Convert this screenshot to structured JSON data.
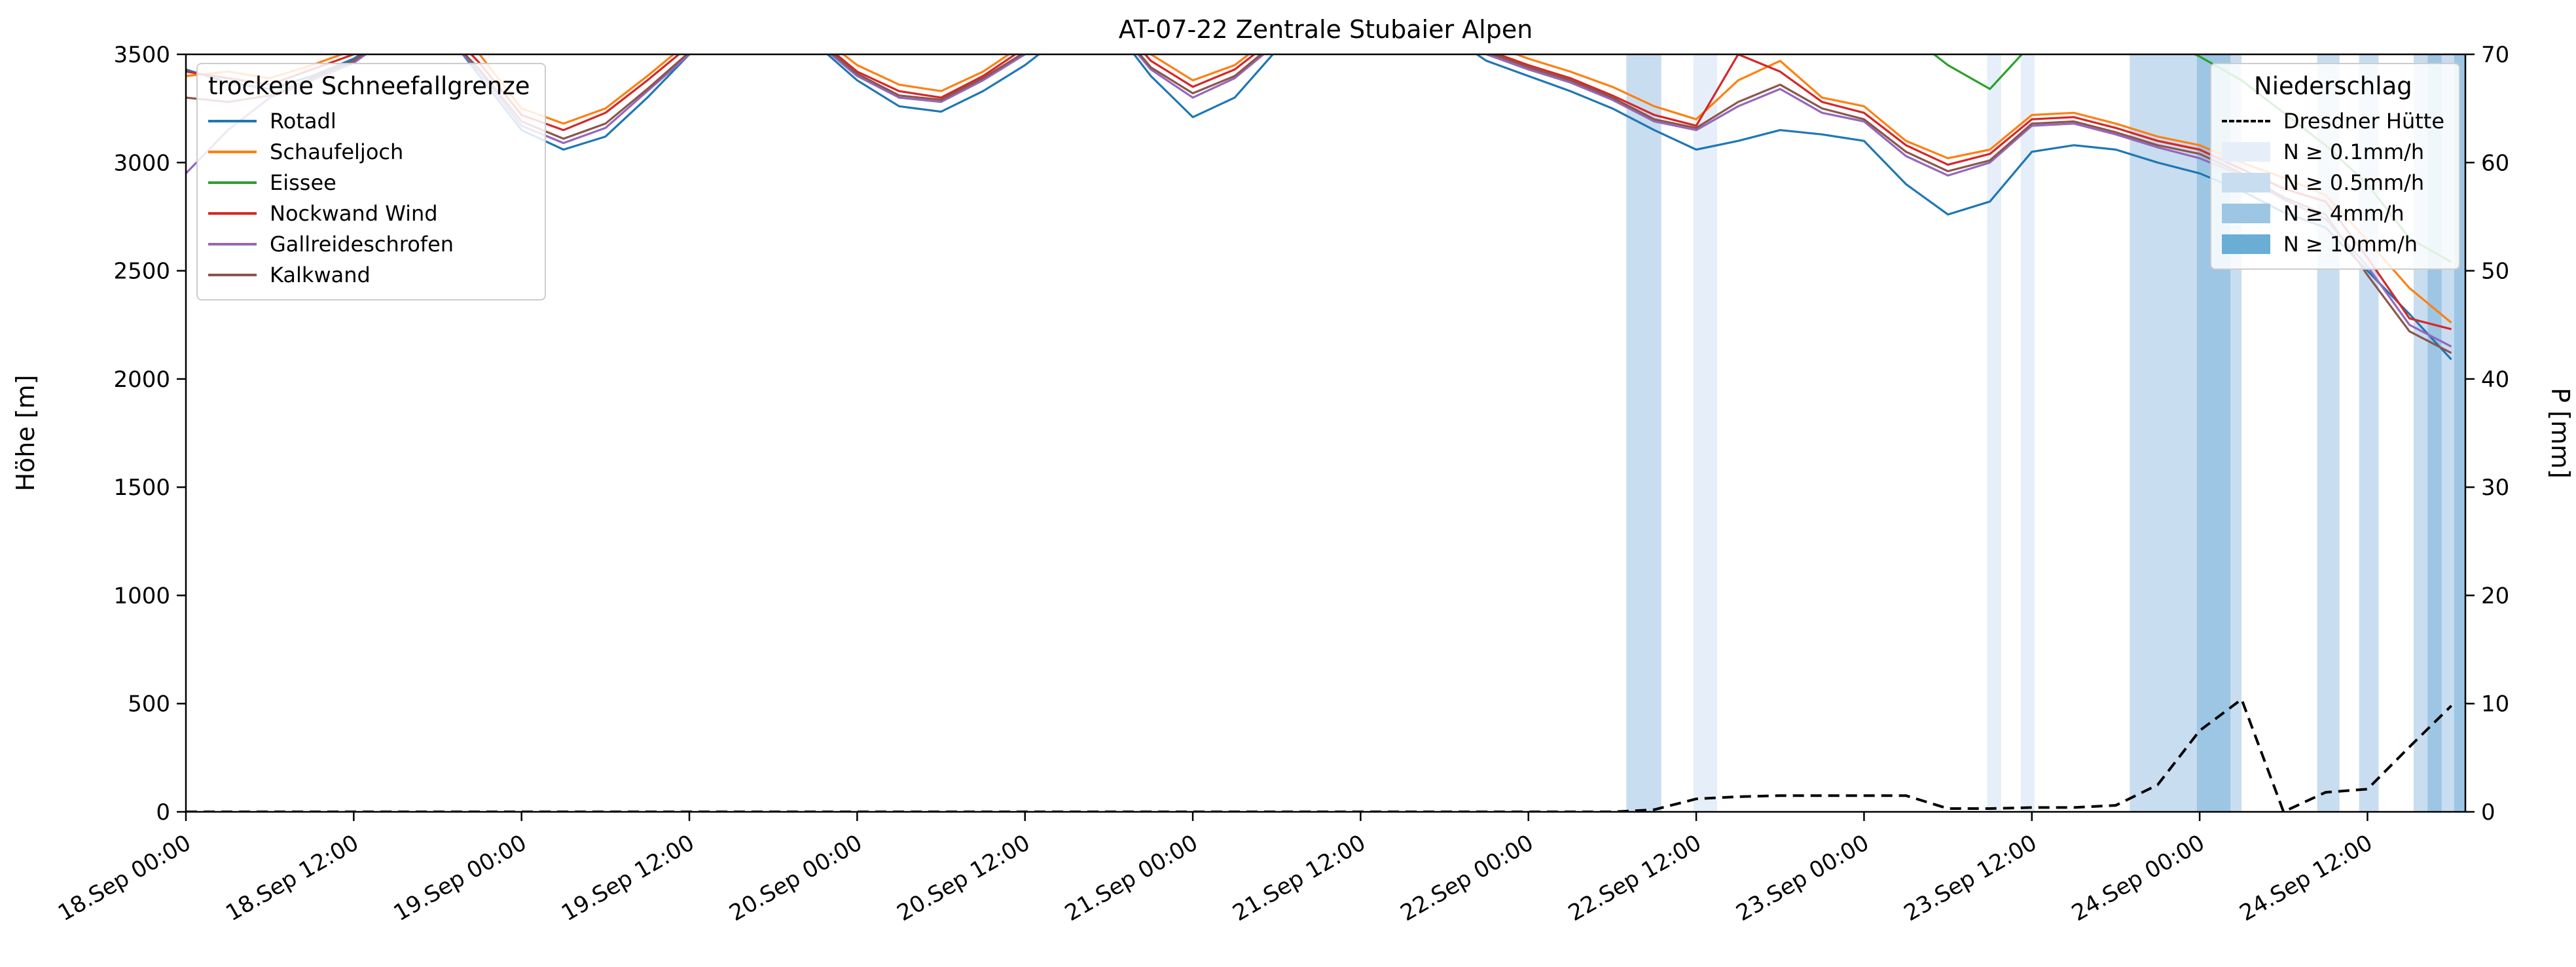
{
  "title": "AT-07-22 Zentrale Stubaier Alpen",
  "axes": {
    "y_left": {
      "label": "Höhe [m]",
      "min": 0,
      "max": 3500,
      "ticks": [
        0,
        500,
        1000,
        1500,
        2000,
        2500,
        3000,
        3500
      ]
    },
    "y_right": {
      "label": "P [mm]",
      "min": 0,
      "max": 70,
      "ticks": [
        0,
        10,
        20,
        30,
        40,
        50,
        60,
        70
      ]
    },
    "x": {
      "min": 0,
      "max": 163,
      "tick_hours": [
        0,
        12,
        24,
        36,
        48,
        60,
        72,
        84,
        96,
        108,
        120,
        132,
        144,
        156
      ],
      "tick_labels": [
        "18.Sep 00:00",
        "18.Sep 12:00",
        "19.Sep 00:00",
        "19.Sep 12:00",
        "20.Sep 00:00",
        "20.Sep 12:00",
        "21.Sep 00:00",
        "21.Sep 12:00",
        "22.Sep 00:00",
        "22.Sep 12:00",
        "23.Sep 00:00",
        "23.Sep 12:00",
        "24.Sep 00:00",
        "24.Sep 12:00"
      ]
    }
  },
  "legend_lines": {
    "title": "trockene Schneefallgrenze"
  },
  "legend_precip": {
    "title": "Niederschlag",
    "line_label": "Dresdner Hütte",
    "band_entries": [
      {
        "label": "N ≥ 0.1mm/h",
        "level": "0.1"
      },
      {
        "label": "N ≥ 0.5mm/h",
        "level": "0.5"
      },
      {
        "label": "N ≥ 4mm/h",
        "level": "4"
      },
      {
        "label": "N ≥ 10mm/h",
        "level": "10"
      }
    ]
  },
  "chart_data": {
    "type": "line",
    "grid": false,
    "legend_positions": [
      "upper left",
      "upper right"
    ],
    "x_unit": "hours since 18.Sep 00:00",
    "x_hours": [
      0,
      3,
      6,
      9,
      12,
      15,
      18,
      21,
      24,
      27,
      30,
      33,
      36,
      39,
      42,
      45,
      48,
      51,
      54,
      57,
      60,
      63,
      66,
      69,
      72,
      75,
      78,
      81,
      84,
      87,
      90,
      93,
      96,
      99,
      102,
      105,
      108,
      111,
      114,
      117,
      120,
      123,
      126,
      129,
      132,
      135,
      138,
      141,
      144,
      147,
      150,
      153,
      156,
      159,
      162
    ],
    "series": [
      {
        "name": "Rotadl",
        "color": "#1f77b4",
        "values": [
          3430,
          3370,
          3340,
          3400,
          3480,
          3600,
          3650,
          3400,
          3150,
          3060,
          3120,
          3300,
          3500,
          3650,
          3700,
          3550,
          3380,
          3260,
          3235,
          3330,
          3450,
          3600,
          3650,
          3400,
          3210,
          3300,
          3520,
          3700,
          3750,
          3700,
          3600,
          3470,
          3400,
          3330,
          3250,
          3150,
          3060,
          3100,
          3150,
          3130,
          3100,
          2900,
          2760,
          2820,
          3050,
          3080,
          3060,
          3000,
          2950,
          2870,
          2770,
          2700,
          2500,
          2300,
          2090
        ]
      },
      {
        "name": "Schaufeljoch",
        "color": "#ff7f0e",
        "values": [
          3400,
          3420,
          3390,
          3450,
          3520,
          3650,
          3680,
          3500,
          3250,
          3180,
          3250,
          3400,
          3560,
          3700,
          3720,
          3600,
          3450,
          3360,
          3330,
          3420,
          3550,
          3680,
          3700,
          3500,
          3380,
          3450,
          3600,
          3750,
          3780,
          3750,
          3650,
          3550,
          3480,
          3420,
          3350,
          3260,
          3200,
          3380,
          3470,
          3300,
          3260,
          3100,
          3020,
          3060,
          3220,
          3230,
          3180,
          3120,
          3080,
          3000,
          2930,
          2850,
          2640,
          2420,
          2260
        ]
      },
      {
        "name": "Eissee",
        "color": "#2ca02c",
        "values": [
          3700,
          3700,
          3700,
          3700,
          3700,
          3700,
          3700,
          3700,
          3700,
          3700,
          3700,
          3700,
          3700,
          3700,
          3700,
          3700,
          3700,
          3700,
          3700,
          3700,
          3700,
          3700,
          3700,
          3700,
          3700,
          3700,
          3700,
          3700,
          3700,
          3700,
          3700,
          3700,
          3700,
          3700,
          3700,
          3700,
          3700,
          3700,
          3700,
          3700,
          3700,
          3600,
          3450,
          3340,
          3550,
          3700,
          3650,
          3580,
          3490,
          3380,
          3230,
          3080,
          2900,
          2650,
          2540
        ]
      },
      {
        "name": "Nockwand Wind",
        "color": "#d62728",
        "values": [
          3420,
          3390,
          3360,
          3430,
          3500,
          3630,
          3660,
          3460,
          3220,
          3150,
          3230,
          3380,
          3540,
          3690,
          3710,
          3580,
          3420,
          3330,
          3300,
          3400,
          3530,
          3660,
          3690,
          3470,
          3350,
          3430,
          3580,
          3730,
          3760,
          3730,
          3620,
          3520,
          3450,
          3390,
          3310,
          3220,
          3170,
          3500,
          3420,
          3280,
          3230,
          3080,
          2990,
          3040,
          3200,
          3210,
          3160,
          3100,
          3060,
          2970,
          2880,
          2820,
          2560,
          2280,
          2230
        ]
      },
      {
        "name": "Gallreideschrofen",
        "color": "#9467bd",
        "values": [
          2950,
          3150,
          3300,
          3380,
          3460,
          3600,
          3620,
          3420,
          3170,
          3090,
          3160,
          3330,
          3500,
          3660,
          3690,
          3560,
          3400,
          3300,
          3280,
          3380,
          3500,
          3640,
          3660,
          3430,
          3300,
          3390,
          3550,
          3700,
          3740,
          3710,
          3600,
          3500,
          3430,
          3370,
          3290,
          3190,
          3150,
          3260,
          3340,
          3230,
          3190,
          3030,
          2940,
          3000,
          3170,
          3180,
          3130,
          3070,
          3020,
          2940,
          2830,
          2740,
          2520,
          2250,
          2150
        ]
      },
      {
        "name": "Kalkwand",
        "color": "#8c564b",
        "values": [
          3300,
          3280,
          3310,
          3390,
          3470,
          3610,
          3630,
          3430,
          3190,
          3110,
          3180,
          3340,
          3510,
          3670,
          3700,
          3570,
          3410,
          3310,
          3290,
          3390,
          3510,
          3650,
          3670,
          3440,
          3320,
          3400,
          3560,
          3710,
          3750,
          3720,
          3610,
          3510,
          3440,
          3380,
          3300,
          3200,
          3160,
          3280,
          3360,
          3250,
          3200,
          3050,
          2960,
          3010,
          3180,
          3190,
          3140,
          3080,
          3040,
          2950,
          2840,
          2760,
          2480,
          2220,
          2120
        ]
      }
    ],
    "precip_line": {
      "name": "Dresdner Hütte",
      "color": "#000000",
      "axis": "right",
      "style": "dashed",
      "values": [
        0,
        0,
        0,
        0,
        0,
        0,
        0,
        0,
        0,
        0,
        0,
        0,
        0,
        0,
        0,
        0,
        0,
        0,
        0,
        0,
        0,
        0,
        0,
        0,
        0,
        0,
        0,
        0,
        0,
        0,
        0,
        0,
        0,
        0,
        0,
        0.2,
        1.2,
        1.4,
        1.5,
        1.5,
        1.5,
        1.5,
        0.3,
        0.3,
        0.4,
        0.4,
        0.6,
        2.5,
        7.5,
        10.4,
        0.0,
        1.8,
        2.1,
        6.0,
        9.8
      ]
    },
    "precip_bands": [
      {
        "start": 103.0,
        "end": 105.5,
        "level": "0.5"
      },
      {
        "start": 107.8,
        "end": 109.5,
        "level": "0.1"
      },
      {
        "start": 128.8,
        "end": 129.8,
        "level": "0.1"
      },
      {
        "start": 131.2,
        "end": 132.2,
        "level": "0.1"
      },
      {
        "start": 139.0,
        "end": 147.0,
        "level": "0.5"
      },
      {
        "start": 143.8,
        "end": 146.2,
        "level": "4"
      },
      {
        "start": 152.4,
        "end": 154.0,
        "level": "0.5"
      },
      {
        "start": 155.4,
        "end": 156.8,
        "level": "0.5"
      },
      {
        "start": 159.3,
        "end": 163.0,
        "level": "0.5"
      },
      {
        "start": 160.3,
        "end": 161.3,
        "level": "4"
      },
      {
        "start": 162.2,
        "end": 163.0,
        "level": "4"
      }
    ],
    "band_colors": {
      "0.1": "#e6eff9",
      "0.5": "#c9ddf0",
      "4": "#9cc6e4",
      "10": "#6aaed6"
    }
  }
}
